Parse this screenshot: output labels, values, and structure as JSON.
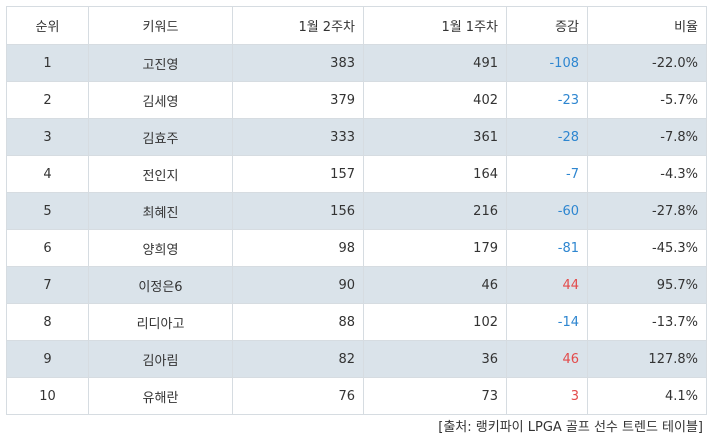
{
  "table": {
    "headers": {
      "rank": "순위",
      "keyword": "키워드",
      "week2": "1월 2주차",
      "week1": "1월 1주차",
      "change": "증감",
      "ratio": "비율"
    },
    "rows": [
      {
        "rank": "1",
        "keyword": "고진영",
        "week2": "383",
        "week1": "491",
        "change": "-108",
        "ratio": "-22.0%"
      },
      {
        "rank": "2",
        "keyword": "김세영",
        "week2": "379",
        "week1": "402",
        "change": "-23",
        "ratio": "-5.7%"
      },
      {
        "rank": "3",
        "keyword": "김효주",
        "week2": "333",
        "week1": "361",
        "change": "-28",
        "ratio": "-7.8%"
      },
      {
        "rank": "4",
        "keyword": "전인지",
        "week2": "157",
        "week1": "164",
        "change": "-7",
        "ratio": "-4.3%"
      },
      {
        "rank": "5",
        "keyword": "최혜진",
        "week2": "156",
        "week1": "216",
        "change": "-60",
        "ratio": "-27.8%"
      },
      {
        "rank": "6",
        "keyword": "양희영",
        "week2": "98",
        "week1": "179",
        "change": "-81",
        "ratio": "-45.3%"
      },
      {
        "rank": "7",
        "keyword": "이정은6",
        "week2": "90",
        "week1": "46",
        "change": "44",
        "ratio": "95.7%"
      },
      {
        "rank": "8",
        "keyword": "리디아고",
        "week2": "88",
        "week1": "102",
        "change": "-14",
        "ratio": "-13.7%"
      },
      {
        "rank": "9",
        "keyword": "김아림",
        "week2": "82",
        "week1": "36",
        "change": "46",
        "ratio": "127.8%"
      },
      {
        "rank": "10",
        "keyword": "유해란",
        "week2": "76",
        "week1": "73",
        "change": "3",
        "ratio": "4.1%"
      }
    ]
  },
  "source": "[출처: 랭키파이 LPGA 골프 선수 트렌드 테이블]",
  "colors": {
    "stripe": "#dae3ea",
    "border": "#d6dce1",
    "negative_change": "#2e86d0",
    "positive_change": "#e34b4b"
  }
}
